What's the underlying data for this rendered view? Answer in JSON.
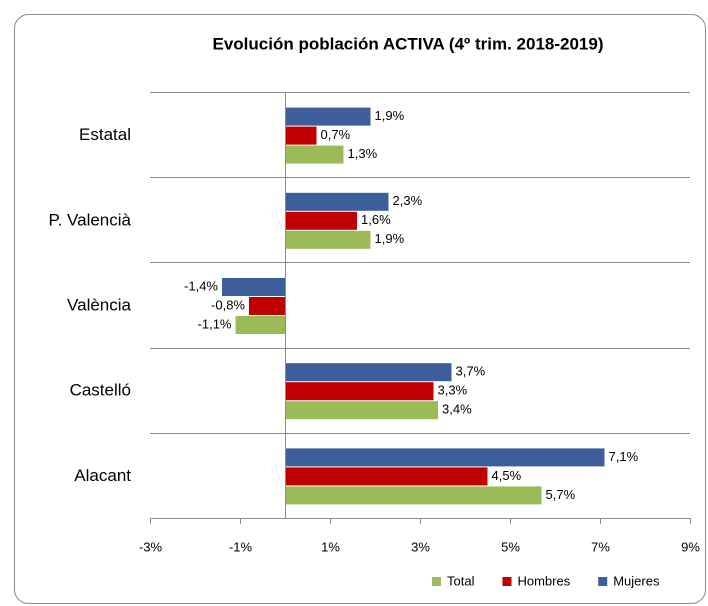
{
  "chart_data": {
    "type": "barh",
    "title": "Evolución población ACTIVA (4º trim. 2018-2019)",
    "categories": [
      "Estatal",
      "P. Valencià",
      "València",
      "Castelló",
      "Alacant"
    ],
    "series": [
      {
        "name": "Total",
        "color": "#9bbb59",
        "values": [
          1.3,
          1.9,
          -1.1,
          3.4,
          5.7
        ],
        "value_labels": [
          "1,3%",
          "1,9%",
          "-1,1%",
          "3,4%",
          "5,7%"
        ]
      },
      {
        "name": "Hombres",
        "color": "#c00000",
        "values": [
          0.7,
          1.6,
          -0.8,
          3.3,
          4.5
        ],
        "value_labels": [
          "0,7%",
          "1,6%",
          "-0,8%",
          "3,3%",
          "4,5%"
        ]
      },
      {
        "name": "Mujeres",
        "color": "#3c5f9b",
        "values": [
          1.9,
          2.3,
          -1.4,
          3.7,
          7.1
        ],
        "value_labels": [
          "1,9%",
          "2,3%",
          "-1,4%",
          "3,7%",
          "7,1%"
        ]
      }
    ],
    "xlim": [
      -3,
      9
    ],
    "xticks": [
      {
        "value": -3,
        "label": "-3%"
      },
      {
        "value": -1,
        "label": "-1%"
      },
      {
        "value": 1,
        "label": "1%"
      },
      {
        "value": 3,
        "label": "3%"
      },
      {
        "value": 5,
        "label": "5%"
      },
      {
        "value": 7,
        "label": "7%"
      },
      {
        "value": 9,
        "label": "9%"
      }
    ],
    "legend": "bottom"
  }
}
